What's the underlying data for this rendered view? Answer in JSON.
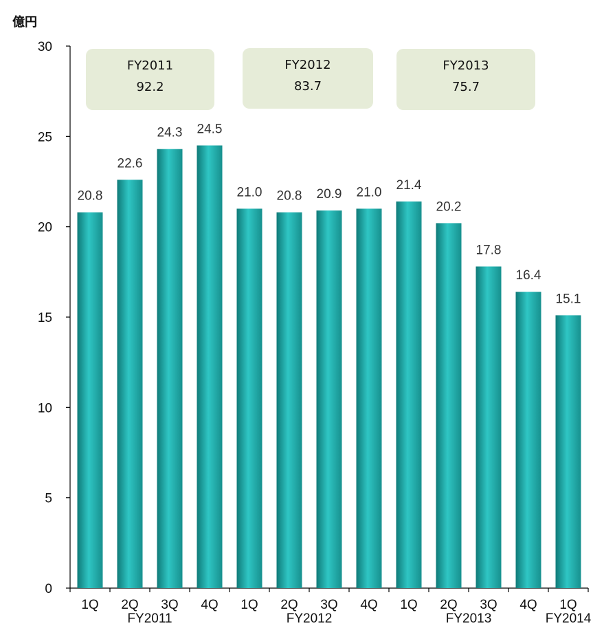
{
  "unit_label": "億円",
  "chart_data": {
    "type": "bar",
    "categories": [
      "1Q",
      "2Q",
      "3Q",
      "4Q",
      "1Q",
      "2Q",
      "3Q",
      "4Q",
      "1Q",
      "2Q",
      "3Q",
      "4Q",
      "1Q"
    ],
    "values": [
      20.8,
      22.6,
      24.3,
      24.5,
      21.0,
      20.8,
      20.9,
      21.0,
      21.4,
      20.2,
      17.8,
      16.4,
      15.1
    ],
    "value_labels": [
      "20.8",
      "22.6",
      "24.3",
      "24.5",
      "21.0",
      "20.8",
      "20.9",
      "21.0",
      "21.4",
      "20.2",
      "17.8",
      "16.4",
      "15.1"
    ],
    "groups": [
      {
        "label": "FY2011",
        "start": 0,
        "end": 3
      },
      {
        "label": "FY2012",
        "start": 4,
        "end": 7
      },
      {
        "label": "FY2013",
        "start": 8,
        "end": 11
      },
      {
        "label": "FY2014",
        "start": 12,
        "end": 12
      }
    ],
    "ylim": [
      0,
      30
    ],
    "yticks": [
      "0",
      "5",
      "10",
      "15",
      "20",
      "25",
      "30"
    ],
    "bar_color": "#2bbdbd",
    "annotations": [
      {
        "label": "FY2011",
        "value": "92.2"
      },
      {
        "label": "FY2012",
        "value": "83.7"
      },
      {
        "label": "FY2013",
        "value": "75.7"
      }
    ]
  }
}
